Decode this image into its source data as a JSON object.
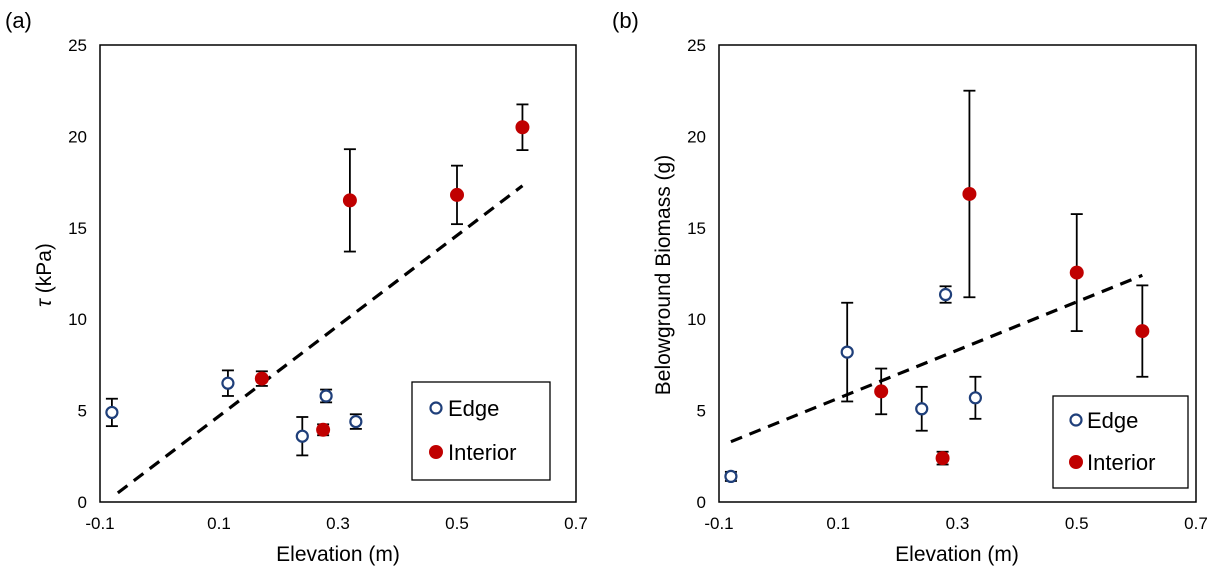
{
  "chart_data": [
    {
      "panel_label": "(a)",
      "type": "scatter",
      "xlabel": "Elevation (m)",
      "ylabel_symbol": "τ",
      "ylabel_unit": " (kPa)",
      "xlim": [
        -0.1,
        0.7
      ],
      "ylim": [
        0,
        25
      ],
      "x_ticks": [
        -0.1,
        0.1,
        0.3,
        0.5,
        0.7
      ],
      "x_tick_labels": [
        "-0.1",
        "0.1",
        "0.3",
        "0.5",
        "0.7"
      ],
      "y_ticks": [
        0,
        5,
        10,
        15,
        20,
        25
      ],
      "y_tick_labels": [
        "0",
        "5",
        "10",
        "15",
        "20",
        "25"
      ],
      "legend_position": "bottom-right",
      "series": [
        {
          "name": "Edge",
          "marker": "open-circle",
          "color": "#1f3f7a",
          "points": [
            {
              "x": -0.08,
              "y": 4.9,
              "err": 0.75
            },
            {
              "x": 0.115,
              "y": 6.5,
              "err": 0.7
            },
            {
              "x": 0.24,
              "y": 3.6,
              "err": 1.05
            },
            {
              "x": 0.28,
              "y": 5.8,
              "err": 0.35
            },
            {
              "x": 0.33,
              "y": 4.4,
              "err": 0.4
            }
          ]
        },
        {
          "name": "Interior",
          "marker": "filled-circle",
          "color": "#c00000",
          "points": [
            {
              "x": 0.172,
              "y": 6.75,
              "err": 0.4
            },
            {
              "x": 0.275,
              "y": 3.95,
              "err": 0.3
            },
            {
              "x": 0.32,
              "y": 16.5,
              "err": 2.8
            },
            {
              "x": 0.5,
              "y": 16.8,
              "err": 1.6
            },
            {
              "x": 0.61,
              "y": 20.5,
              "err": 1.25
            }
          ]
        }
      ],
      "trendline": {
        "style": "dashed",
        "color": "#000000",
        "x": [
          -0.07,
          0.61
        ],
        "y": [
          0.5,
          17.3
        ]
      }
    },
    {
      "panel_label": "(b)",
      "type": "scatter",
      "xlabel": "Elevation (m)",
      "ylabel": "Belowground Biomass (g)",
      "xlim": [
        -0.1,
        0.7
      ],
      "ylim": [
        0,
        25
      ],
      "x_ticks": [
        -0.1,
        0.1,
        0.3,
        0.5,
        0.7
      ],
      "x_tick_labels": [
        "-0.1",
        "0.1",
        "0.3",
        "0.5",
        "0.7"
      ],
      "y_ticks": [
        0,
        5,
        10,
        15,
        20,
        25
      ],
      "y_tick_labels": [
        "0",
        "5",
        "10",
        "15",
        "20",
        "25"
      ],
      "legend_position": "bottom-right",
      "series": [
        {
          "name": "Edge",
          "marker": "open-circle",
          "color": "#1f3f7a",
          "points": [
            {
              "x": -0.08,
              "y": 1.4,
              "err": 0.25
            },
            {
              "x": 0.115,
              "y": 8.2,
              "err": 2.7
            },
            {
              "x": 0.24,
              "y": 5.1,
              "err": 1.2
            },
            {
              "x": 0.28,
              "y": 11.35,
              "err": 0.45
            },
            {
              "x": 0.33,
              "y": 5.7,
              "err": 1.15
            }
          ]
        },
        {
          "name": "Interior",
          "marker": "filled-circle",
          "color": "#c00000",
          "points": [
            {
              "x": 0.172,
              "y": 6.05,
              "err": 1.25
            },
            {
              "x": 0.275,
              "y": 2.4,
              "err": 0.35
            },
            {
              "x": 0.32,
              "y": 16.85,
              "err": 5.65
            },
            {
              "x": 0.5,
              "y": 12.55,
              "err": 3.2
            },
            {
              "x": 0.61,
              "y": 9.35,
              "err": 2.5
            }
          ]
        }
      ],
      "trendline": {
        "style": "dashed",
        "color": "#000000",
        "x": [
          -0.08,
          0.61
        ],
        "y": [
          3.3,
          12.4
        ]
      }
    }
  ]
}
